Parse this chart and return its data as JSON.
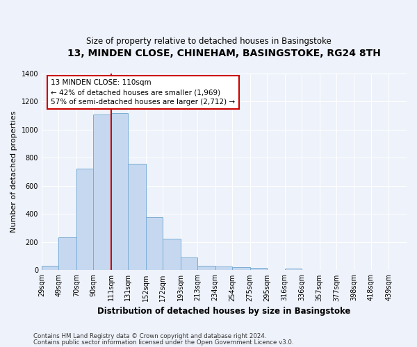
{
  "title": "13, MINDEN CLOSE, CHINEHAM, BASINGSTOKE, RG24 8TH",
  "subtitle": "Size of property relative to detached houses in Basingstoke",
  "xlabel": "Distribution of detached houses by size in Basingstoke",
  "ylabel": "Number of detached properties",
  "footnote1": "Contains HM Land Registry data © Crown copyright and database right 2024.",
  "footnote2": "Contains public sector information licensed under the Open Government Licence v3.0.",
  "bar_labels": [
    "29sqm",
    "49sqm",
    "70sqm",
    "90sqm",
    "111sqm",
    "131sqm",
    "152sqm",
    "172sqm",
    "193sqm",
    "213sqm",
    "234sqm",
    "254sqm",
    "275sqm",
    "295sqm",
    "316sqm",
    "336sqm",
    "357sqm",
    "377sqm",
    "398sqm",
    "418sqm",
    "439sqm"
  ],
  "bar_values": [
    30,
    235,
    725,
    1110,
    1120,
    760,
    378,
    222,
    90,
    30,
    25,
    22,
    15,
    0,
    12,
    0,
    0,
    0,
    0,
    0,
    0
  ],
  "bar_color": "#c5d8f0",
  "bar_edge_color": "#7aadd4",
  "property_label": "13 MINDEN CLOSE: 110sqm",
  "arrow_left_text": "← 42% of detached houses are smaller (1,969)",
  "arrow_right_text": "57% of semi-detached houses are larger (2,712) →",
  "vline_color": "#cc0000",
  "vline_x_bin_index": 4,
  "annotation_box_color": "#cc0000",
  "ylim": [
    0,
    1400
  ],
  "yticks": [
    0,
    200,
    400,
    600,
    800,
    1000,
    1200,
    1400
  ],
  "bg_color": "#eef2fa",
  "grid_color": "#ffffff",
  "bin_edges": [
    29,
    49,
    70,
    90,
    111,
    131,
    152,
    172,
    193,
    213,
    234,
    254,
    275,
    295,
    316,
    336,
    357,
    377,
    398,
    418,
    439,
    460
  ]
}
